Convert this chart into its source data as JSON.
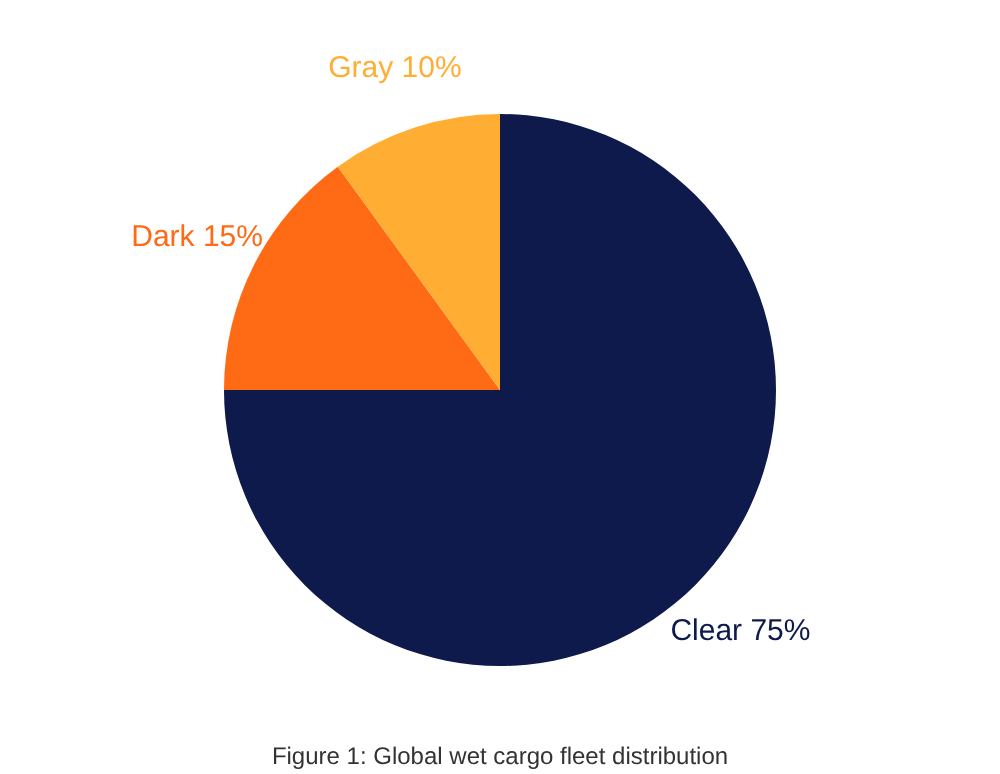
{
  "chart_data": {
    "type": "pie",
    "categories": [
      "Clear",
      "Dark",
      "Gray"
    ],
    "values": [
      75,
      15,
      10
    ],
    "value_labels": [
      "75%",
      "15%",
      "10%"
    ],
    "colors": [
      "#0e1a4b",
      "#ff6a14",
      "#ffad33"
    ],
    "legend": false,
    "annotations": [
      "Figure 1: Global wet cargo fleet distribution"
    ]
  }
}
